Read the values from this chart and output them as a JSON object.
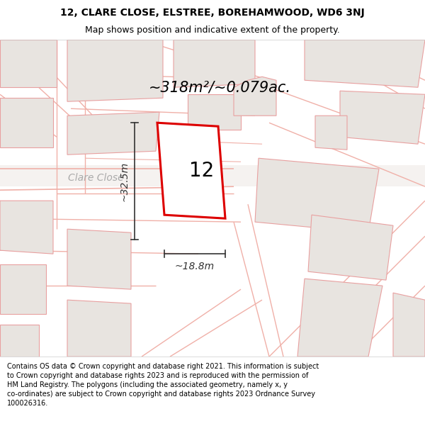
{
  "title_line1": "12, CLARE CLOSE, ELSTREE, BOREHAMWOOD, WD6 3NJ",
  "title_line2": "Map shows position and indicative extent of the property.",
  "footer_text": "Contains OS data © Crown copyright and database right 2021. This information is subject to Crown copyright and database rights 2023 and is reproduced with the permission of HM Land Registry. The polygons (including the associated geometry, namely x, y co-ordinates) are subject to Crown copyright and database rights 2023 Ordnance Survey 100026316.",
  "area_text": "~318m²/~0.079ac.",
  "street_label": "Clare Close",
  "number_label": "12",
  "dim_width": "~18.8m",
  "dim_height": "~32.5m",
  "map_bg": "#faf8f7",
  "plot_fill": "#ffffff",
  "plot_edge": "#dd0000",
  "bld_fill": "#e8e4e0",
  "bld_edge": "#e8a0a0",
  "road_edge": "#f0b0a8",
  "dim_color": "#333333",
  "street_color": "#aaaaaa",
  "title_fontsize": 10,
  "subtitle_fontsize": 9,
  "footer_fontsize": 7.0,
  "area_fontsize": 15,
  "street_fontsize": 10,
  "number_fontsize": 20,
  "dim_fontsize": 10
}
